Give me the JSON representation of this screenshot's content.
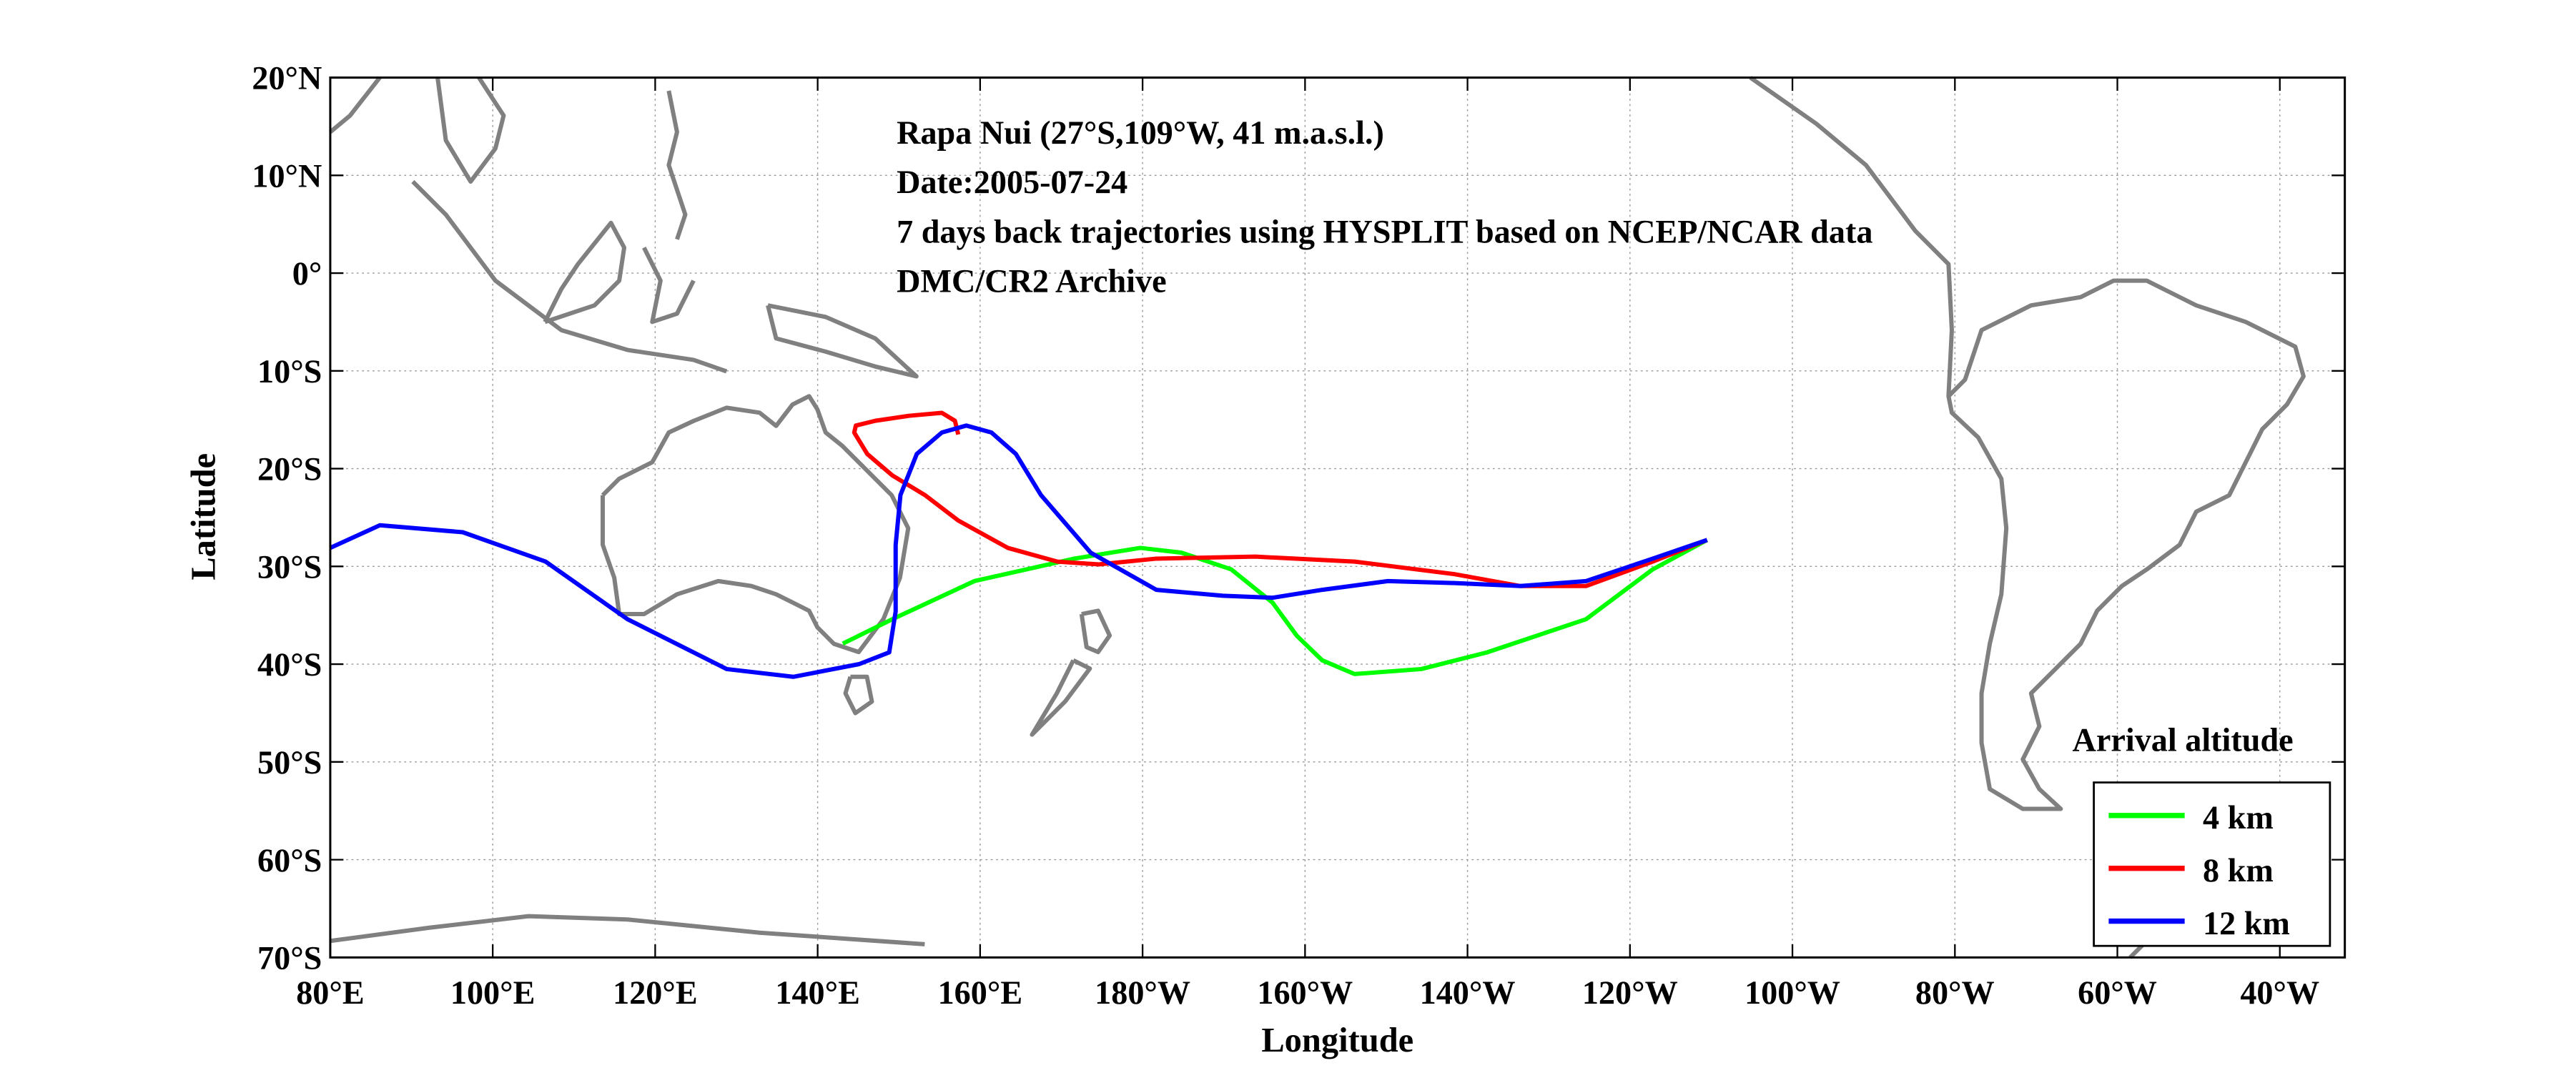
{
  "chart_data": {
    "type": "line",
    "title_lines": [
      "Rapa Nui (27°S,109°W, 41 m.a.s.l.)",
      "Date:2005-07-24",
      "7 days back trajectories using HYSPLIT based on NCEP/NCAR data",
      "DMC/CR2 Archive"
    ],
    "xlabel": "Longitude",
    "ylabel": "Latitude",
    "xlim": [
      80,
      328
    ],
    "ylim": [
      -70,
      20
    ],
    "xticks": [
      80,
      100,
      120,
      140,
      160,
      180,
      200,
      220,
      240,
      260,
      280,
      300,
      320
    ],
    "xtick_labels": [
      "80°E",
      "100°E",
      "120°E",
      "140°E",
      "160°E",
      "180°W",
      "160°W",
      "140°W",
      "120°W",
      "100°W",
      "80°W",
      "60°W",
      "40°W"
    ],
    "yticks": [
      20,
      10,
      0,
      -10,
      -20,
      -30,
      -40,
      -50,
      -60,
      -70
    ],
    "ytick_labels": [
      "20°N",
      "10°N",
      "0°",
      "10°S",
      "20°S",
      "30°S",
      "40°S",
      "50°S",
      "60°S",
      "70°S"
    ],
    "grid": true,
    "legend": {
      "title": "Arrival altitude",
      "placement": "bottom-right"
    },
    "series": [
      {
        "name": "4 km",
        "color": "#00ff00",
        "lon": [
          249.5,
          242.8,
          234.6,
          222.4,
          214.3,
          206.1,
          202.1,
          199.0,
          196.0,
          190.9,
          184.8,
          179.7,
          171.6,
          159.3,
          149.2,
          143.1
        ],
        "lat": [
          -27.3,
          -30.3,
          -35.4,
          -38.8,
          -40.5,
          -41.0,
          -39.6,
          -37.1,
          -33.7,
          -30.3,
          -28.6,
          -28.1,
          -29.2,
          -31.5,
          -35.4,
          -37.9
        ]
      },
      {
        "name": "8 km",
        "color": "#ff0000",
        "lon": [
          249.5,
          242.8,
          234.6,
          226.5,
          218.4,
          206.1,
          193.9,
          181.7,
          174.6,
          169.5,
          163.4,
          157.3,
          153.2,
          149.2,
          146.1,
          144.5,
          144.7,
          147.1,
          151.2,
          155.3,
          156.9,
          157.3
        ],
        "lat": [
          -27.3,
          -29.5,
          -32.0,
          -32.0,
          -30.8,
          -29.5,
          -29.0,
          -29.2,
          -29.8,
          -29.5,
          -28.1,
          -25.3,
          -22.7,
          -20.7,
          -18.5,
          -16.3,
          -15.6,
          -15.1,
          -14.6,
          -14.3,
          -15.1,
          -16.5
        ]
      },
      {
        "name": "12 km",
        "color": "#0000ff",
        "lon": [
          249.5,
          242.8,
          234.6,
          226.5,
          218.4,
          210.2,
          202.1,
          196.0,
          189.9,
          181.7,
          173.6,
          167.5,
          164.4,
          161.4,
          158.3,
          155.3,
          152.2,
          150.2,
          149.6,
          149.6,
          148.8,
          145.1,
          137.0,
          128.8,
          116.6,
          106.5,
          96.3,
          86.1,
          80.0
        ],
        "lat": [
          -27.3,
          -29.2,
          -31.5,
          -32.0,
          -31.7,
          -31.5,
          -32.4,
          -33.2,
          -33.0,
          -32.4,
          -28.6,
          -22.7,
          -18.5,
          -16.3,
          -15.6,
          -16.3,
          -18.5,
          -22.7,
          -27.8,
          -34.6,
          -38.8,
          -40.0,
          -41.3,
          -40.5,
          -35.4,
          -29.5,
          -26.5,
          -25.8,
          -28.1
        ]
      }
    ]
  }
}
